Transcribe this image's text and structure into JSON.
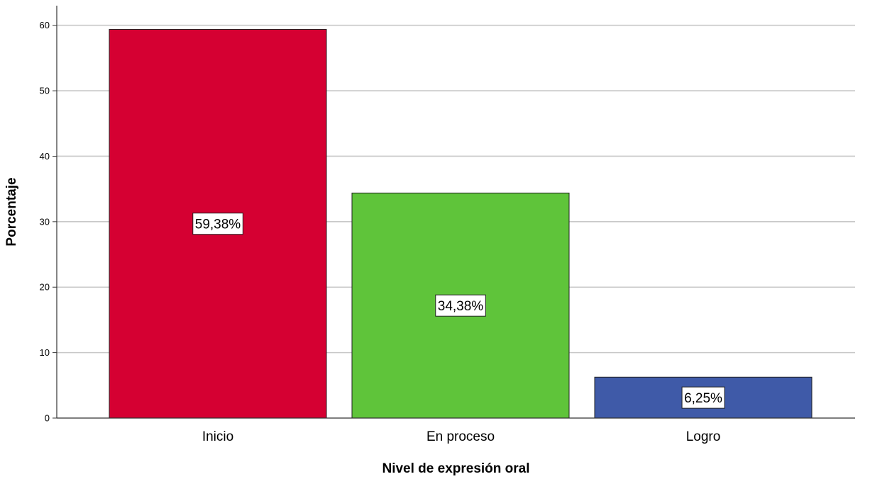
{
  "chart_data": {
    "type": "bar",
    "categories": [
      "Inicio",
      "En proceso",
      "Logro"
    ],
    "values": [
      59.38,
      34.38,
      6.25
    ],
    "data_labels": [
      "59,38%",
      "34,38%",
      "6,25%"
    ],
    "colors": [
      "#d50032",
      "#5fc43a",
      "#3f5aa8"
    ],
    "xlabel": "Nivel de expresión oral",
    "ylabel": "Porcentaje",
    "ylim": [
      0,
      63
    ],
    "yticks": [
      0,
      10,
      20,
      30,
      40,
      50,
      60
    ],
    "grid": true,
    "gridline_color": "#c8c8c8"
  }
}
